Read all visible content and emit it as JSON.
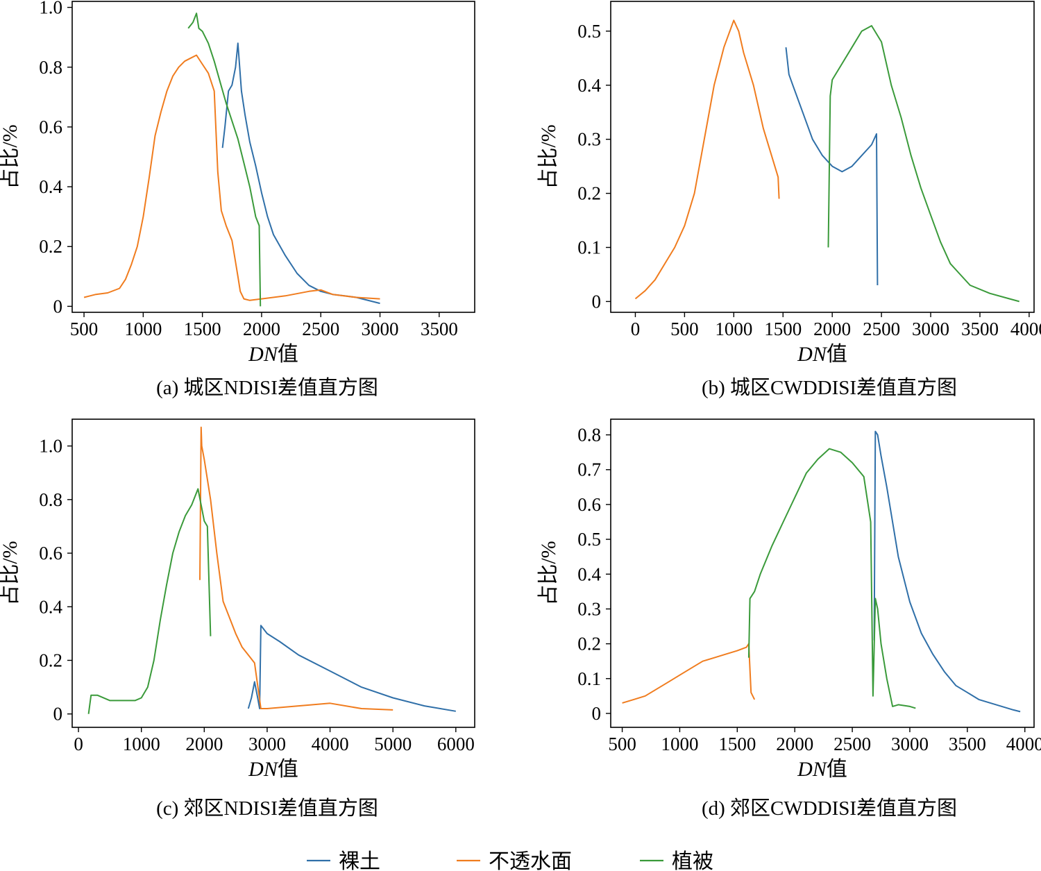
{
  "chart_data": [
    {
      "type": "line",
      "caption": "(a) 城区NDISI差值直方图",
      "xlabel_italic": "DN",
      "xlabel_suffix": "值",
      "ylabel": "占比/%",
      "xlim": [
        400,
        3800
      ],
      "ylim": [
        -0.02,
        1.02
      ],
      "xticks": [
        500,
        1000,
        1500,
        2000,
        2500,
        3000,
        3500
      ],
      "xtick_labels": [
        "500",
        "1000",
        "1500",
        "2000",
        "2500",
        "3000",
        "3500"
      ],
      "yticks": [
        0,
        0.2,
        0.4,
        0.6,
        0.8,
        1.0
      ],
      "ytick_labels": [
        "0",
        "0.2",
        "0.4",
        "0.6",
        "0.8",
        "1.0"
      ],
      "series": [
        {
          "name": "裸土",
          "color": "#2f6fa8",
          "x": [
            1670,
            1690,
            1720,
            1750,
            1780,
            1800,
            1830,
            1860,
            1900,
            1950,
            2000,
            2050,
            2100,
            2200,
            2300,
            2400,
            2500,
            2600,
            2700,
            2800,
            3000
          ],
          "y": [
            0.53,
            0.6,
            0.72,
            0.74,
            0.8,
            0.88,
            0.72,
            0.64,
            0.55,
            0.47,
            0.38,
            0.3,
            0.24,
            0.17,
            0.11,
            0.07,
            0.05,
            0.04,
            0.035,
            0.03,
            0.01
          ]
        },
        {
          "name": "不透水面",
          "color": "#f07c1e",
          "x": [
            500,
            600,
            700,
            800,
            850,
            900,
            950,
            1000,
            1050,
            1100,
            1150,
            1200,
            1250,
            1300,
            1350,
            1400,
            1450,
            1500,
            1550,
            1600,
            1630,
            1660,
            1700,
            1750,
            1800,
            1820,
            1850,
            1900,
            2000,
            2200,
            2400,
            2500,
            2600,
            2800,
            3000
          ],
          "y": [
            0.03,
            0.04,
            0.045,
            0.06,
            0.09,
            0.14,
            0.2,
            0.3,
            0.43,
            0.57,
            0.65,
            0.72,
            0.77,
            0.8,
            0.82,
            0.83,
            0.84,
            0.81,
            0.78,
            0.72,
            0.45,
            0.32,
            0.27,
            0.22,
            0.1,
            0.05,
            0.025,
            0.02,
            0.025,
            0.035,
            0.05,
            0.055,
            0.04,
            0.03,
            0.025
          ]
        },
        {
          "name": "植被",
          "color": "#3a9a3a",
          "x": [
            1380,
            1420,
            1450,
            1470,
            1500,
            1550,
            1600,
            1650,
            1700,
            1750,
            1800,
            1850,
            1900,
            1950,
            1980,
            1990
          ],
          "y": [
            0.93,
            0.95,
            0.98,
            0.93,
            0.92,
            0.88,
            0.82,
            0.75,
            0.68,
            0.62,
            0.56,
            0.48,
            0.4,
            0.3,
            0.27,
            0.0
          ]
        }
      ]
    },
    {
      "type": "line",
      "caption": "(b) 城区CWDDISI差值直方图",
      "xlabel_italic": "DN",
      "xlabel_suffix": "值",
      "ylabel": "占比/%",
      "xlim": [
        -250,
        4050
      ],
      "ylim": [
        -0.02,
        0.555
      ],
      "xticks": [
        0,
        500,
        1000,
        1500,
        2000,
        2500,
        3000,
        3500,
        4000
      ],
      "xtick_labels": [
        "0",
        "500",
        "1000",
        "1500",
        "2000",
        "2500",
        "3000",
        "3500",
        "4000"
      ],
      "yticks": [
        0,
        0.1,
        0.2,
        0.3,
        0.4,
        0.5
      ],
      "ytick_labels": [
        "0",
        "0.1",
        "0.2",
        "0.3",
        "0.4",
        "0.5"
      ],
      "series": [
        {
          "name": "裸土",
          "color": "#2f6fa8",
          "x": [
            1530,
            1560,
            1600,
            1700,
            1800,
            1900,
            2000,
            2100,
            2200,
            2300,
            2400,
            2450,
            2460
          ],
          "y": [
            0.47,
            0.42,
            0.4,
            0.35,
            0.3,
            0.27,
            0.25,
            0.24,
            0.25,
            0.27,
            0.29,
            0.31,
            0.03
          ]
        },
        {
          "name": "不透水面",
          "color": "#f07c1e",
          "x": [
            0,
            100,
            200,
            300,
            400,
            500,
            600,
            700,
            800,
            900,
            1000,
            1050,
            1100,
            1200,
            1300,
            1400,
            1450,
            1460
          ],
          "y": [
            0.005,
            0.02,
            0.04,
            0.07,
            0.1,
            0.14,
            0.2,
            0.3,
            0.4,
            0.47,
            0.52,
            0.5,
            0.46,
            0.4,
            0.32,
            0.26,
            0.23,
            0.19
          ]
        },
        {
          "name": "植被",
          "color": "#3a9a3a",
          "x": [
            1960,
            1980,
            2000,
            2100,
            2200,
            2300,
            2400,
            2500,
            2600,
            2700,
            2800,
            2900,
            3000,
            3100,
            3200,
            3300,
            3400,
            3600,
            3800,
            3900
          ],
          "y": [
            0.1,
            0.38,
            0.41,
            0.44,
            0.47,
            0.5,
            0.51,
            0.48,
            0.4,
            0.34,
            0.27,
            0.21,
            0.16,
            0.11,
            0.07,
            0.05,
            0.03,
            0.015,
            0.005,
            0.0
          ]
        }
      ]
    },
    {
      "type": "line",
      "caption": "(c) 郊区NDISI差值直方图",
      "xlabel_italic": "DN",
      "xlabel_suffix": "值",
      "ylabel": "占比/%",
      "xlim": [
        -100,
        6300
      ],
      "ylim": [
        -0.05,
        1.1
      ],
      "xticks": [
        0,
        1000,
        2000,
        3000,
        4000,
        5000,
        6000
      ],
      "xtick_labels": [
        "0",
        "1000",
        "2000",
        "3000",
        "4000",
        "5000",
        "6000"
      ],
      "yticks": [
        0,
        0.2,
        0.4,
        0.6,
        0.8,
        1.0
      ],
      "ytick_labels": [
        "0",
        "0.2",
        "0.4",
        "0.6",
        "0.8",
        "1.0"
      ],
      "series": [
        {
          "name": "裸土",
          "color": "#2f6fa8",
          "x": [
            2700,
            2750,
            2800,
            2850,
            2880,
            2900,
            3000,
            3200,
            3500,
            4000,
            4500,
            5000,
            5500,
            6000
          ],
          "y": [
            0.02,
            0.06,
            0.12,
            0.06,
            0.02,
            0.33,
            0.3,
            0.27,
            0.22,
            0.16,
            0.1,
            0.06,
            0.03,
            0.01
          ]
        },
        {
          "name": "不透水面",
          "color": "#f07c1e",
          "x": [
            1930,
            1950,
            1960,
            2000,
            2100,
            2200,
            2300,
            2400,
            2500,
            2600,
            2700,
            2800,
            2900,
            3000,
            3500,
            4000,
            4500,
            5000
          ],
          "y": [
            0.5,
            1.07,
            1.0,
            0.95,
            0.8,
            0.6,
            0.42,
            0.36,
            0.3,
            0.25,
            0.22,
            0.19,
            0.02,
            0.02,
            0.03,
            0.04,
            0.02,
            0.015
          ]
        },
        {
          "name": "植被",
          "color": "#3a9a3a",
          "x": [
            160,
            200,
            300,
            500,
            700,
            900,
            1000,
            1100,
            1200,
            1300,
            1400,
            1500,
            1600,
            1700,
            1800,
            1900,
            2000,
            2050,
            2100
          ],
          "y": [
            0.0,
            0.07,
            0.07,
            0.05,
            0.05,
            0.05,
            0.06,
            0.1,
            0.2,
            0.35,
            0.48,
            0.6,
            0.68,
            0.74,
            0.78,
            0.84,
            0.72,
            0.7,
            0.29
          ]
        }
      ]
    },
    {
      "type": "line",
      "caption": "(d) 郊区CWDDISI差值直方图",
      "xlabel_italic": "DN",
      "xlabel_suffix": "值",
      "ylabel": "占比/%",
      "xlim": [
        400,
        4080
      ],
      "ylim": [
        -0.04,
        0.845
      ],
      "xticks": [
        500,
        1000,
        1500,
        2000,
        2500,
        3000,
        3500,
        4000
      ],
      "xtick_labels": [
        "500",
        "1000",
        "1500",
        "2000",
        "2500",
        "3000",
        "3500",
        "4000"
      ],
      "yticks": [
        0,
        0.1,
        0.2,
        0.3,
        0.4,
        0.5,
        0.6,
        0.7,
        0.8
      ],
      "ytick_labels": [
        "0",
        "0.1",
        "0.2",
        "0.3",
        "0.4",
        "0.5",
        "0.6",
        "0.7",
        "0.8"
      ],
      "series": [
        {
          "name": "裸土",
          "color": "#2f6fa8",
          "x": [
            2690,
            2700,
            2720,
            2750,
            2800,
            2850,
            2900,
            3000,
            3100,
            3200,
            3300,
            3400,
            3500,
            3600,
            3700,
            3800,
            3900,
            3960
          ],
          "y": [
            0.21,
            0.81,
            0.8,
            0.74,
            0.65,
            0.55,
            0.45,
            0.32,
            0.23,
            0.17,
            0.12,
            0.08,
            0.06,
            0.04,
            0.03,
            0.02,
            0.01,
            0.005
          ]
        },
        {
          "name": "不透水面",
          "color": "#f07c1e",
          "x": [
            500,
            600,
            700,
            800,
            900,
            1000,
            1100,
            1200,
            1300,
            1400,
            1500,
            1580,
            1600,
            1620,
            1650
          ],
          "y": [
            0.03,
            0.04,
            0.05,
            0.07,
            0.09,
            0.11,
            0.13,
            0.15,
            0.16,
            0.17,
            0.18,
            0.19,
            0.2,
            0.06,
            0.04
          ]
        },
        {
          "name": "植被",
          "color": "#3a9a3a",
          "x": [
            1600,
            1610,
            1650,
            1700,
            1800,
            1900,
            2000,
            2100,
            2200,
            2300,
            2400,
            2500,
            2600,
            2660,
            2680,
            2700,
            2720,
            2750,
            2800,
            2850,
            2900,
            3000,
            3050
          ],
          "y": [
            0.16,
            0.33,
            0.35,
            0.4,
            0.48,
            0.55,
            0.62,
            0.69,
            0.73,
            0.76,
            0.75,
            0.72,
            0.68,
            0.55,
            0.05,
            0.33,
            0.3,
            0.2,
            0.1,
            0.02,
            0.025,
            0.02,
            0.015
          ]
        }
      ]
    }
  ],
  "legend": [
    {
      "label": "裸土",
      "color": "#2f6fa8"
    },
    {
      "label": "不透水面",
      "color": "#f07c1e"
    },
    {
      "label": "植被",
      "color": "#3a9a3a"
    }
  ]
}
